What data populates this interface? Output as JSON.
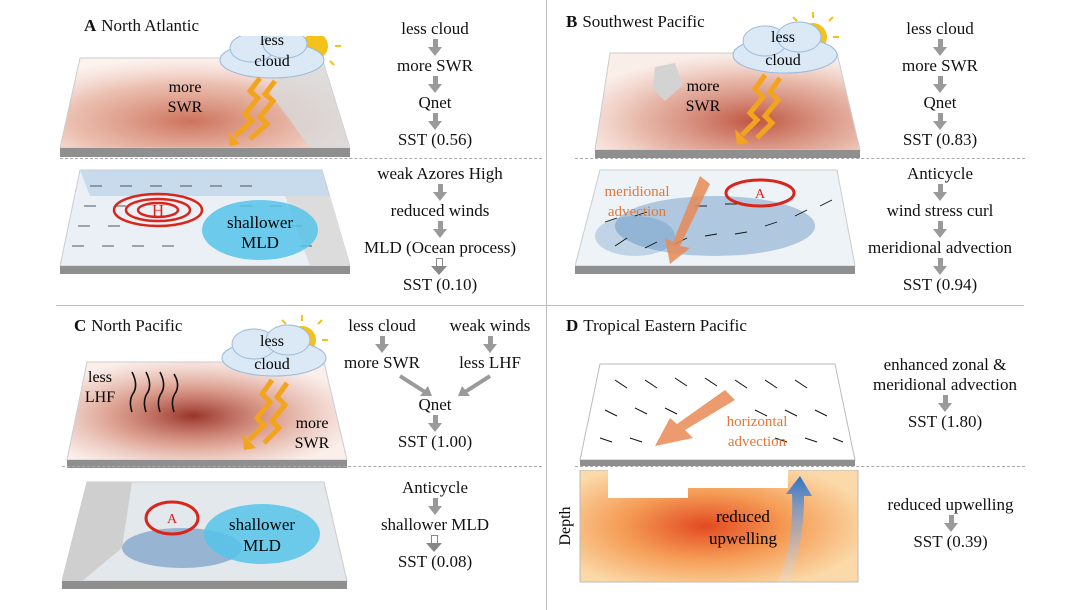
{
  "panels": {
    "A": {
      "letter": "A",
      "title": "North Atlantic",
      "map_labels": {
        "cloud": [
          "less",
          "cloud"
        ],
        "swr": [
          "more",
          "SWR"
        ],
        "high": "H",
        "mld": [
          "shallower",
          "MLD"
        ]
      },
      "flow1": [
        "less cloud",
        "more SWR",
        "Qnet",
        "SST (0.56)"
      ],
      "flow2": [
        "weak Azores High",
        "reduced winds",
        "MLD (Ocean process)",
        "SST (0.10)"
      ]
    },
    "B": {
      "letter": "B",
      "title": "Southwest Pacific",
      "map_labels": {
        "cloud": [
          "less",
          "cloud"
        ],
        "swr": [
          "more",
          "SWR"
        ],
        "adv": [
          "meridional",
          "advection"
        ],
        "anti": "A"
      },
      "flow1": [
        "less cloud",
        "more SWR",
        "Qnet",
        "SST (0.83)"
      ],
      "flow2": [
        "Anticycle",
        "wind stress curl",
        "meridional advection",
        "SST (0.94)"
      ]
    },
    "C": {
      "letter": "C",
      "title": "North Pacific",
      "map_labels": {
        "cloud": [
          "less",
          "cloud"
        ],
        "lhf": [
          "less",
          "LHF"
        ],
        "swr": [
          "more",
          "SWR"
        ],
        "anti": "A",
        "mld": [
          "shallower",
          "MLD"
        ]
      },
      "flow1_left": [
        "less cloud",
        "more SWR"
      ],
      "flow1_right": [
        "weak winds",
        "less LHF"
      ],
      "flow1_merge": [
        "Qnet",
        "SST (1.00)"
      ],
      "flow2": [
        "Anticycle",
        "shallower MLD",
        "SST (0.08)"
      ]
    },
    "D": {
      "letter": "D",
      "title": "Tropical Eastern Pacific",
      "map_labels": {
        "adv": [
          "horizontal",
          "advection"
        ],
        "depth": "Depth",
        "upw": [
          "reduced",
          "upwelling"
        ]
      },
      "flow1": [
        "enhanced zonal &",
        "meridional advection",
        "SST (1.80)"
      ],
      "flow2": [
        "reduced upwelling",
        "SST (0.39)"
      ]
    }
  },
  "colors": {
    "warm": "#c0523a",
    "cool": "#3a78b5",
    "cloud": "#dbe9f7",
    "sun": "#f5c21b",
    "arrow_swr": "#f2a41d",
    "high": "#d9251c",
    "mld": "#56c3ea",
    "advection": "#e88a55"
  },
  "icons": [
    "sun-icon",
    "cloud-icon",
    "sunlight-arrow-icon",
    "high-pressure-icon",
    "anticyclone-icon",
    "heat-flux-arrows-icon",
    "advection-arrow-icon",
    "upwelling-arrow-icon",
    "flow-arrow-icon"
  ]
}
